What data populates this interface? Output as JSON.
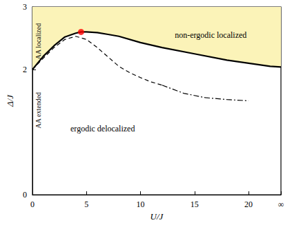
{
  "chart_data": {
    "type": "line",
    "x_label": "U/J",
    "y_label": "Δ/J",
    "xlim": [
      0,
      23
    ],
    "xticks": [
      0,
      5,
      10,
      15,
      20,
      {
        "value": 23,
        "label": "∞"
      }
    ],
    "ylim": [
      0,
      3
    ],
    "yticks": [
      0,
      2,
      3
    ],
    "grid": false,
    "annotations": [
      "AA localized",
      "AA extended",
      "non-ergodic localized",
      "ergodic delocalized"
    ],
    "series": [
      {
        "type": "line",
        "color": "#000000",
        "line_style": "solid",
        "marker": "none",
        "x": [
          0,
          1,
          2,
          3,
          4,
          4.5,
          5,
          6,
          7,
          8,
          10,
          12,
          15,
          18,
          20,
          22,
          23
        ],
        "values": [
          2.0,
          2.21,
          2.38,
          2.52,
          2.58,
          2.6,
          2.6,
          2.59,
          2.56,
          2.53,
          2.43,
          2.35,
          2.25,
          2.15,
          2.1,
          2.05,
          2.04
        ]
      },
      {
        "type": "line",
        "color": "#000000",
        "line_style": "dashed",
        "marker": "none",
        "x": [
          0,
          1,
          2,
          3,
          4,
          5,
          6,
          7,
          8,
          9,
          10,
          11,
          12
        ],
        "values": [
          2.0,
          2.18,
          2.35,
          2.48,
          2.53,
          2.48,
          2.35,
          2.2,
          2.05,
          1.95,
          1.87,
          1.8,
          1.75
        ]
      },
      {
        "type": "line",
        "color": "#000000",
        "line_style": "dashdot",
        "marker": "none",
        "x": [
          12,
          14,
          16,
          18,
          20
        ],
        "values": [
          1.75,
          1.62,
          1.55,
          1.52,
          1.5
        ]
      },
      {
        "type": "scatter",
        "color": "#ff0000",
        "marker": "circle",
        "x": [
          4.5
        ],
        "values": [
          2.6
        ]
      }
    ]
  }
}
